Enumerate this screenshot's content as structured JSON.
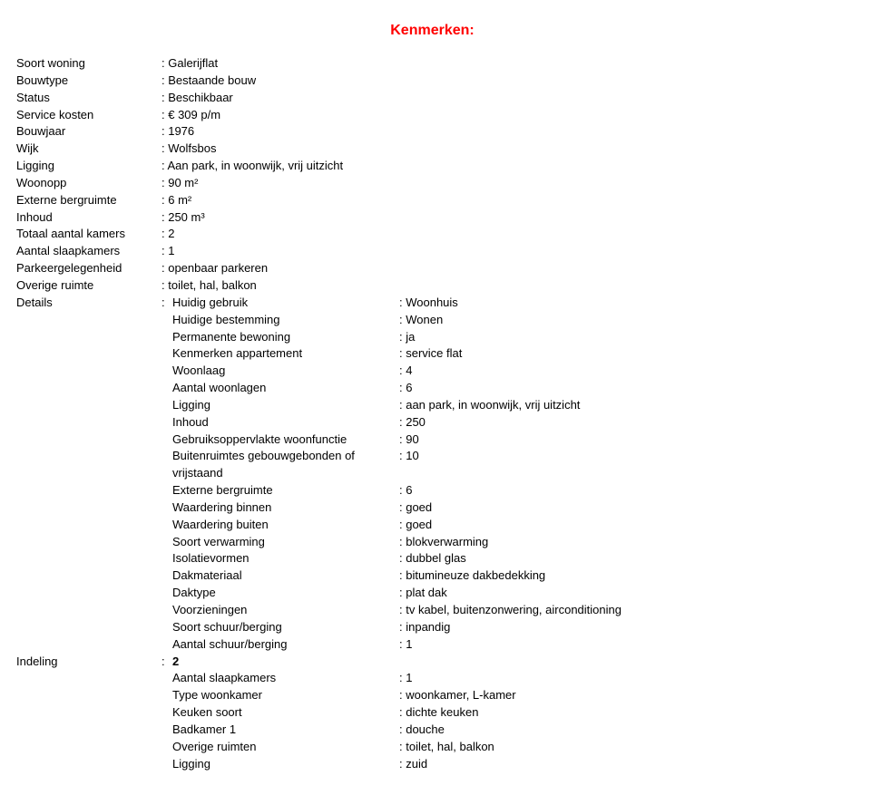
{
  "heading": "Kenmerken:",
  "main": [
    {
      "label": "Soort woning",
      "value": "Galerijflat"
    },
    {
      "label": "Bouwtype",
      "value": "Bestaande bouw"
    },
    {
      "label": "Status",
      "value": "Beschikbaar"
    },
    {
      "label": "Service kosten",
      "value": "€ 309 p/m"
    },
    {
      "label": "Bouwjaar",
      "value": "1976"
    },
    {
      "label": "Wijk",
      "value": "Wolfsbos"
    },
    {
      "label": "Ligging",
      "value": "Aan park, in woonwijk, vrij uitzicht"
    },
    {
      "label": "Woonopp",
      "value": "90 m²"
    },
    {
      "label": "Externe bergruimte",
      "value": "6 m²"
    },
    {
      "label": "Inhoud",
      "value": "250 m³"
    },
    {
      "label": "Totaal aantal kamers",
      "value": "2"
    },
    {
      "label": "Aantal slaapkamers",
      "value": "1"
    },
    {
      "label": "Parkeergelegenheid",
      "value": "openbaar parkeren"
    },
    {
      "label": "Overige ruimte",
      "value": "toilet, hal, balkon"
    }
  ],
  "details": {
    "label": "Details",
    "items": [
      {
        "label": "Huidig gebruik",
        "value": "Woonhuis"
      },
      {
        "label": "Huidige bestemming",
        "value": "Wonen"
      },
      {
        "label": "Permanente bewoning",
        "value": "ja"
      },
      {
        "label": "Kenmerken appartement",
        "value": "service flat"
      },
      {
        "label": "Woonlaag",
        "value": "4"
      },
      {
        "label": "Aantal woonlagen",
        "value": "6"
      },
      {
        "label": "Ligging",
        "value": "aan park, in woonwijk, vrij uitzicht"
      },
      {
        "label": "Inhoud",
        "value": "250"
      },
      {
        "label": "Gebruiksoppervlakte woonfunctie",
        "value": "90"
      },
      {
        "label": "Buitenruimtes gebouwgebonden of vrijstaand",
        "value": "10"
      },
      {
        "label": "Externe bergruimte",
        "value": "6"
      },
      {
        "label": "Waardering binnen",
        "value": "goed"
      },
      {
        "label": "Waardering buiten",
        "value": "goed"
      },
      {
        "label": "Soort verwarming",
        "value": "blokverwarming"
      },
      {
        "label": "Isolatievormen",
        "value": "dubbel glas"
      },
      {
        "label": "Dakmateriaal",
        "value": "bitumineuze dakbedekking"
      },
      {
        "label": "Daktype",
        "value": "plat dak"
      },
      {
        "label": "Voorzieningen",
        "value": "tv kabel, buitenzonwering, airconditioning"
      },
      {
        "label": "Soort schuur/berging",
        "value": "inpandig"
      },
      {
        "label": "Aantal schuur/berging",
        "value": "1"
      }
    ]
  },
  "indeling": {
    "label": "Indeling",
    "header_value": "2",
    "items": [
      {
        "label": "Aantal slaapkamers",
        "value": "1"
      },
      {
        "label": "Type woonkamer",
        "value": "woonkamer, L-kamer"
      },
      {
        "label": "Keuken soort",
        "value": "dichte keuken"
      },
      {
        "label": "Badkamer 1",
        "value": "douche"
      },
      {
        "label": "Overige ruimten",
        "value": "toilet, hal, balkon"
      },
      {
        "label": "Ligging",
        "value": "zuid"
      }
    ]
  },
  "colors": {
    "heading": "#ff0000",
    "text": "#000000",
    "background": "#ffffff"
  }
}
